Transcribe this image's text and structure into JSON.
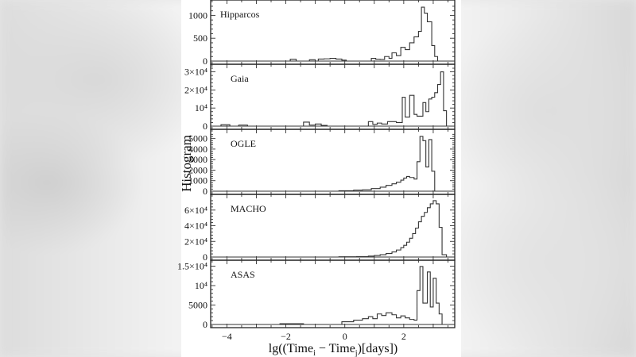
{
  "chart_data": {
    "type": "bar",
    "title": "",
    "xlabel": "lg((Time_i − Time_j)[days])",
    "xlabel_parts": {
      "pre": "lg((Time",
      "sub_i": "i",
      "mid": " − Time",
      "sub_j": "j",
      "post": ")[days])"
    },
    "ylabel": "Histogram",
    "xlim": [
      -4.55,
      3.73
    ],
    "x_ticks": [
      -4,
      -2,
      0,
      2
    ],
    "x_tick_labels": [
      "−4",
      "−2",
      "0",
      "2"
    ],
    "grid": false,
    "legend": null,
    "layout": "5 vertically stacked step-histogram panels sharing x-axis",
    "panels": [
      {
        "name": "Hipparcos",
        "ylim": [
          0,
          1250
        ],
        "y_ticks": [
          0,
          500,
          1000
        ],
        "y_tick_labels": [
          "0",
          "500",
          "1000"
        ],
        "bins": [
          [
            -1.85,
            -1.65,
            40
          ],
          [
            -1.2,
            -1.0,
            30
          ],
          [
            -0.9,
            -0.7,
            45
          ],
          [
            -0.7,
            -0.5,
            50
          ],
          [
            -0.5,
            -0.3,
            60
          ],
          [
            -0.3,
            -0.1,
            45
          ],
          [
            -0.1,
            0.05,
            20
          ],
          [
            0.9,
            1.05,
            60
          ],
          [
            1.05,
            1.2,
            40
          ],
          [
            1.2,
            1.35,
            35
          ],
          [
            1.35,
            1.5,
            100
          ],
          [
            1.5,
            1.6,
            60
          ],
          [
            1.6,
            1.75,
            180
          ],
          [
            1.75,
            1.9,
            120
          ],
          [
            1.9,
            2.05,
            300
          ],
          [
            2.05,
            2.2,
            250
          ],
          [
            2.2,
            2.35,
            400
          ],
          [
            2.35,
            2.5,
            530
          ],
          [
            2.5,
            2.6,
            650
          ],
          [
            2.6,
            2.7,
            1180
          ],
          [
            2.7,
            2.8,
            1050
          ],
          [
            2.8,
            2.95,
            860
          ],
          [
            2.95,
            3.05,
            340
          ],
          [
            3.05,
            3.15,
            100
          ]
        ]
      },
      {
        "name": "Gaia",
        "ylim": [
          0,
          32000
        ],
        "y_ticks": [
          0,
          10000,
          20000,
          30000
        ],
        "y_tick_labels": [
          "0",
          "10⁴",
          "2×10⁴",
          "3×10⁴"
        ],
        "bins": [
          [
            -4.2,
            -3.9,
            800
          ],
          [
            -3.6,
            -3.3,
            600
          ],
          [
            -1.4,
            -1.2,
            2200
          ],
          [
            -1.2,
            -1.0,
            600
          ],
          [
            -1.0,
            -0.8,
            1200
          ],
          [
            -0.8,
            -0.6,
            400
          ],
          [
            0.8,
            0.95,
            2500
          ],
          [
            0.95,
            1.1,
            1000
          ],
          [
            1.1,
            1.25,
            1700
          ],
          [
            1.25,
            1.45,
            1200
          ],
          [
            1.45,
            1.75,
            2500
          ],
          [
            1.75,
            1.95,
            2000
          ],
          [
            1.95,
            2.05,
            16000
          ],
          [
            2.05,
            2.2,
            5000
          ],
          [
            2.2,
            2.35,
            17000
          ],
          [
            2.35,
            2.45,
            6500
          ],
          [
            2.45,
            2.65,
            5500
          ],
          [
            2.65,
            2.75,
            13000
          ],
          [
            2.75,
            2.85,
            8000
          ],
          [
            2.85,
            2.95,
            15000
          ],
          [
            2.95,
            3.05,
            16000
          ],
          [
            3.05,
            3.15,
            18500
          ],
          [
            3.15,
            3.25,
            23000
          ],
          [
            3.25,
            3.35,
            30000
          ],
          [
            3.35,
            3.45,
            8500
          ]
        ]
      },
      {
        "name": "OGLE",
        "ylim": [
          0,
          5500
        ],
        "y_ticks": [
          0,
          1000,
          2000,
          3000,
          4000,
          5000
        ],
        "y_tick_labels": [
          "0",
          "1000",
          "2000",
          "3000",
          "4000",
          "5000"
        ],
        "bins": [
          [
            -0.2,
            0.3,
            40
          ],
          [
            0.3,
            0.6,
            100
          ],
          [
            0.6,
            0.9,
            130
          ],
          [
            0.9,
            1.2,
            250
          ],
          [
            1.2,
            1.4,
            380
          ],
          [
            1.4,
            1.6,
            550
          ],
          [
            1.6,
            1.75,
            700
          ],
          [
            1.75,
            1.9,
            850
          ],
          [
            1.9,
            2.0,
            1050
          ],
          [
            2.0,
            2.1,
            1250
          ],
          [
            2.1,
            2.2,
            1400
          ],
          [
            2.2,
            2.35,
            1300
          ],
          [
            2.35,
            2.45,
            1150
          ],
          [
            2.45,
            2.55,
            2800
          ],
          [
            2.55,
            2.65,
            5200
          ],
          [
            2.65,
            2.75,
            4800
          ],
          [
            2.75,
            2.85,
            2300
          ],
          [
            2.85,
            2.95,
            4900
          ],
          [
            2.95,
            3.05,
            1900
          ]
        ]
      },
      {
        "name": "MACHO",
        "ylim": [
          0,
          75000
        ],
        "y_ticks": [
          0,
          20000,
          40000,
          60000
        ],
        "y_tick_labels": [
          "0",
          "2×10⁴",
          "4×10⁴",
          "6×10⁴"
        ],
        "bins": [
          [
            -0.2,
            0.4,
            300
          ],
          [
            0.4,
            0.8,
            600
          ],
          [
            0.8,
            1.0,
            1200
          ],
          [
            1.0,
            1.2,
            2000
          ],
          [
            1.2,
            1.4,
            3000
          ],
          [
            1.4,
            1.6,
            4500
          ],
          [
            1.6,
            1.75,
            6500
          ],
          [
            1.75,
            1.9,
            9000
          ],
          [
            1.9,
            2.0,
            12000
          ],
          [
            2.0,
            2.1,
            15000
          ],
          [
            2.1,
            2.2,
            19000
          ],
          [
            2.2,
            2.3,
            24000
          ],
          [
            2.3,
            2.4,
            30000
          ],
          [
            2.4,
            2.5,
            37000
          ],
          [
            2.5,
            2.6,
            45000
          ],
          [
            2.6,
            2.7,
            52000
          ],
          [
            2.7,
            2.8,
            57000
          ],
          [
            2.8,
            2.9,
            63000
          ],
          [
            2.9,
            3.0,
            68000
          ],
          [
            3.0,
            3.1,
            72000
          ],
          [
            3.1,
            3.2,
            68000
          ],
          [
            3.2,
            3.3,
            38000
          ],
          [
            3.3,
            3.45,
            3000
          ]
        ]
      },
      {
        "name": "ASAS",
        "ylim": [
          0,
          15500
        ],
        "y_ticks": [
          0,
          5000,
          10000,
          15000
        ],
        "y_tick_labels": [
          "0",
          "5000",
          "10⁴",
          "1.5×10⁴"
        ],
        "bins": [
          [
            -2.2,
            -1.4,
            200
          ],
          [
            -0.1,
            0.3,
            700
          ],
          [
            0.3,
            0.6,
            1100
          ],
          [
            0.6,
            0.8,
            1500
          ],
          [
            0.8,
            0.95,
            2000
          ],
          [
            0.95,
            1.1,
            1500
          ],
          [
            1.1,
            1.25,
            2700
          ],
          [
            1.25,
            1.4,
            2300
          ],
          [
            1.4,
            1.6,
            3000
          ],
          [
            1.6,
            1.75,
            2500
          ],
          [
            1.75,
            1.9,
            1700
          ],
          [
            1.9,
            2.05,
            2200
          ],
          [
            2.05,
            2.2,
            1700
          ],
          [
            2.2,
            2.35,
            1300
          ],
          [
            2.35,
            2.45,
            1100
          ],
          [
            2.45,
            2.55,
            8700
          ],
          [
            2.55,
            2.65,
            14900
          ],
          [
            2.65,
            2.8,
            5500
          ],
          [
            2.8,
            2.9,
            13500
          ],
          [
            2.9,
            3.0,
            4500
          ],
          [
            3.0,
            3.1,
            11900
          ],
          [
            3.1,
            3.2,
            5500
          ],
          [
            3.2,
            3.3,
            2700
          ]
        ]
      }
    ]
  }
}
